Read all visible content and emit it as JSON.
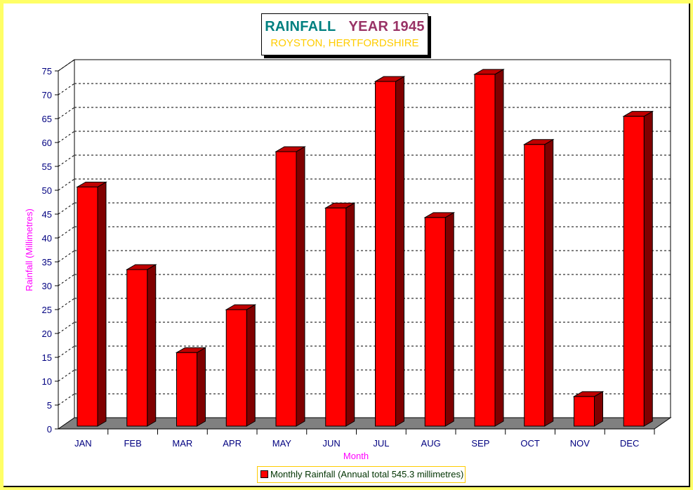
{
  "chart_data": {
    "type": "bar",
    "title": "RAINFALL",
    "title_year": "YEAR 1945",
    "subtitle": "ROYSTON, HERTFORDSHIRE",
    "xlabel": "Month",
    "ylabel": "Rainfall  (Millimetres)",
    "categories": [
      "JAN",
      "FEB",
      "MAR",
      "APR",
      "MAY",
      "JUN",
      "JUL",
      "AUG",
      "SEP",
      "OCT",
      "NOV",
      "DEC"
    ],
    "series": [
      {
        "name": "Monthly Rainfall (Annual total 545.3 millimetres)",
        "values": [
          50.1,
          32.8,
          15.4,
          24.4,
          57.5,
          45.7,
          72.2,
          43.7,
          73.7,
          59.0,
          6.2,
          64.9
        ]
      }
    ],
    "ylim": [
      0,
      75
    ],
    "yticks": [
      "0",
      "5",
      "10",
      "15",
      "20",
      "25",
      "30",
      "35",
      "40",
      "45",
      "50",
      "55",
      "60",
      "65",
      "70",
      "75"
    ],
    "grid": true,
    "legend_position": "bottom-center",
    "colors": {
      "bar_front": "#ff0000",
      "bar_side": "#800000",
      "bar_top": "#c00000",
      "floor": "#808080",
      "axis_text": "#000080",
      "label_text": "#ff00ff",
      "title_teal": "#008080",
      "title_purple": "#993366",
      "subtitle": "#ffcc00"
    }
  }
}
